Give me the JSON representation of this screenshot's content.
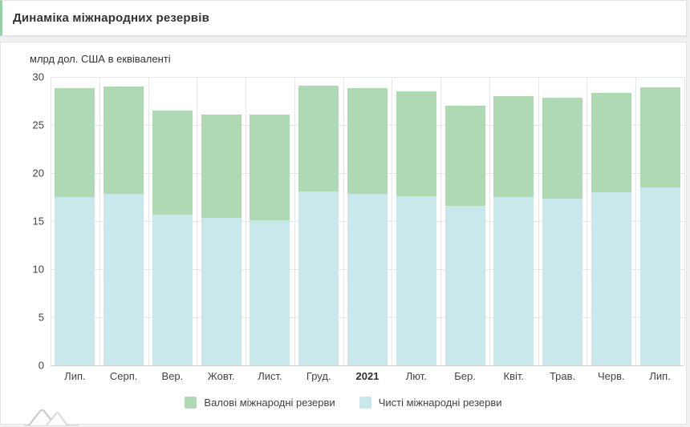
{
  "header": {
    "title": "Динаміка міжнародних резервів",
    "accent_color": "#97d1a5"
  },
  "chart_data": {
    "type": "bar",
    "title": "Динаміка міжнародних резервів",
    "ylabel": "млрд дол. США в еквіваленті",
    "categories": [
      "Лип.",
      "Серп.",
      "Вер.",
      "Жовт.",
      "Лист.",
      "Груд.",
      "2021",
      "Лют.",
      "Бер.",
      "Квіт.",
      "Трав.",
      "Черв.",
      "Лип."
    ],
    "bold_category": "2021",
    "series": [
      {
        "name": "Валові міжнародні резерви",
        "color": "#afd9b3",
        "values": [
          28.8,
          29.0,
          26.5,
          26.1,
          26.1,
          29.1,
          28.8,
          28.5,
          27.0,
          28.0,
          27.8,
          28.3,
          28.9
        ]
      },
      {
        "name": "Чисті міжнародні резерви",
        "color": "#c9e8ec",
        "values": [
          17.5,
          17.8,
          15.7,
          15.3,
          15.1,
          18.1,
          17.8,
          17.6,
          16.6,
          17.5,
          17.3,
          18.0,
          18.5
        ]
      }
    ],
    "ylim": [
      0,
      30
    ],
    "yticks": [
      0,
      5,
      10,
      15,
      20,
      25,
      30
    ],
    "grid": true,
    "legend_position": "bottom",
    "bar_style": "net series drawn from baseline, gross series stacked above it"
  }
}
